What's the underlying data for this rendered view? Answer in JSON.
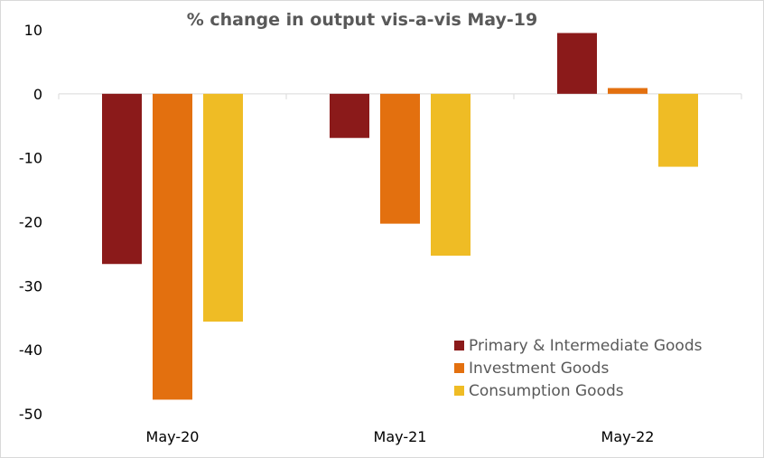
{
  "chart_data": {
    "type": "bar",
    "title": "% change in output vis-a-vis May-19",
    "xlabel": "",
    "ylabel": "",
    "categories": [
      "May-20",
      "May-21",
      "May-22"
    ],
    "series": [
      {
        "name": "Primary & Intermediate Goods",
        "color": "#8b1a1a",
        "values": [
          -26.6,
          -6.9,
          9.5
        ]
      },
      {
        "name": "Investment Goods",
        "color": "#e3700f",
        "values": [
          -47.8,
          -20.3,
          0.9
        ]
      },
      {
        "name": "Consumption Goods",
        "color": "#efbc25",
        "values": [
          -35.6,
          -25.3,
          -11.4
        ]
      }
    ],
    "ylim": [
      -50,
      10
    ],
    "yticks": [
      "10",
      "0",
      "-10",
      "-20",
      "-30",
      "-40",
      "-50"
    ],
    "grid": false,
    "legend_position": "bottom-right"
  }
}
